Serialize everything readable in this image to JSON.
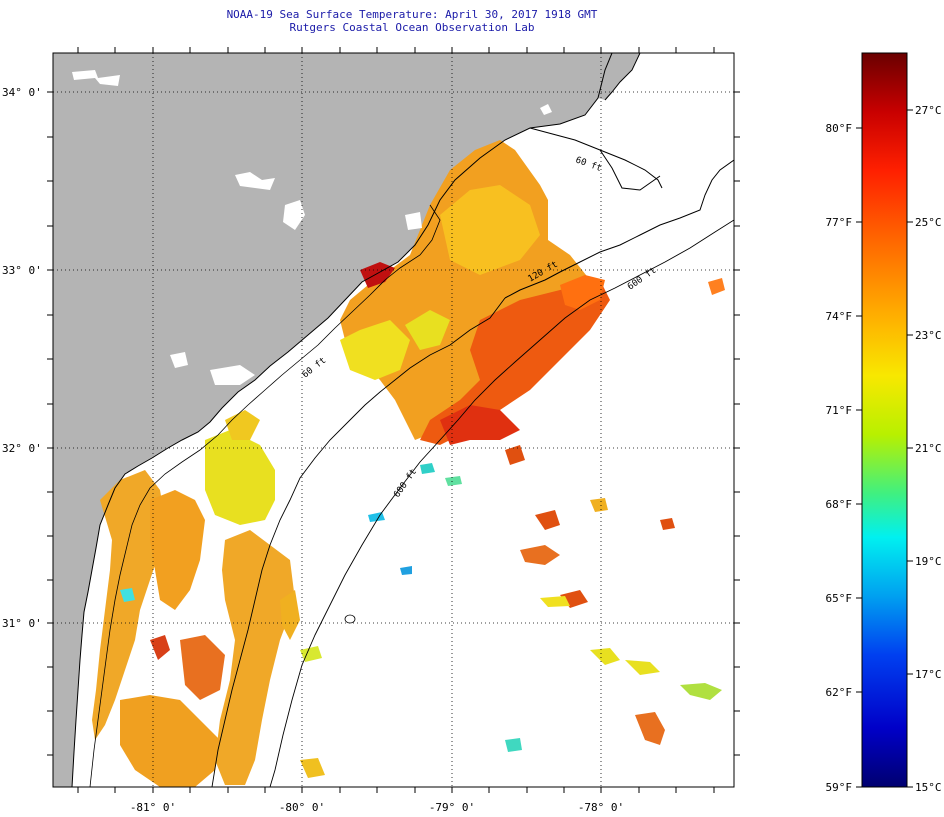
{
  "title": "NOAA-19 Sea Surface Temperature:  April 30, 2017 1918 GMT",
  "subtitle": "Rutgers Coastal Ocean Observation Lab",
  "map": {
    "lat_labels": [
      "34° 0'",
      "33° 0'",
      "32° 0'",
      "31° 0'"
    ],
    "lon_labels": [
      "-81° 0'",
      "-80° 0'",
      "-79° 0'",
      "-78° 0'"
    ],
    "isobath_labels": [
      "60 ft",
      "120 ft",
      "600 ft",
      "600 ft",
      "60 ft"
    ],
    "colors": {
      "land": "#b4b4b4",
      "ocean_nodata": "#ffffff",
      "coastline": "#000000"
    }
  },
  "colorbar": {
    "fahrenheit_labels": [
      "80°F",
      "77°F",
      "74°F",
      "71°F",
      "68°F",
      "65°F",
      "62°F",
      "59°F"
    ],
    "celsius_labels": [
      "27°C",
      "25°C",
      "23°C",
      "21°C",
      "19°C",
      "17°C",
      "15°C"
    ],
    "color_stops": [
      "#6a0000",
      "#c80000",
      "#ff2000",
      "#ff6a00",
      "#ffb000",
      "#f8e800",
      "#b8f000",
      "#40f080",
      "#00f0f0",
      "#00a0f0",
      "#0040f0",
      "#0000c8",
      "#000070"
    ]
  }
}
